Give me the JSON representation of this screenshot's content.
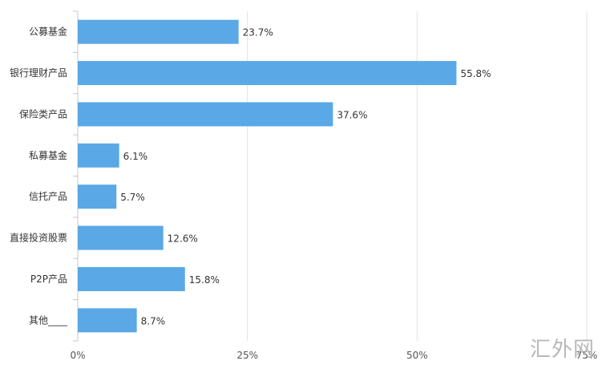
{
  "chart_data": {
    "type": "bar",
    "orientation": "horizontal",
    "categories": [
      "公募基金",
      "银行理财产品",
      "保险类产品",
      "私募基金",
      "信托产品",
      "直接投资股票",
      "P2P产品",
      "其他____"
    ],
    "values": [
      23.7,
      55.8,
      37.6,
      6.1,
      5.7,
      12.6,
      15.8,
      8.7
    ],
    "value_labels": [
      "23.7%",
      "55.8%",
      "37.6%",
      "6.1%",
      "5.7%",
      "12.6%",
      "15.8%",
      "8.7%"
    ],
    "x_ticks": [
      0,
      25,
      50,
      75
    ],
    "x_tick_labels": [
      "0%",
      "25%",
      "50%",
      "75%"
    ],
    "xlim": [
      0,
      75
    ],
    "grid": true,
    "bar_color": "#5aa8e6",
    "grid_color": "#e3e3e3",
    "axis_color": "#c8c8c8"
  },
  "watermark": "汇外网"
}
